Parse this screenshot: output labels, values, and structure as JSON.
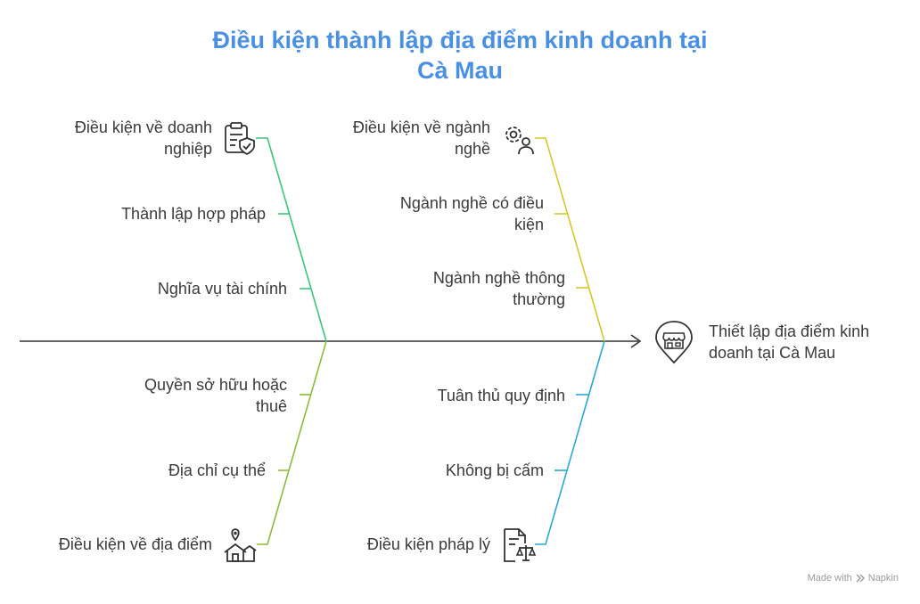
{
  "title": {
    "line1": "Điều kiện thành lập địa điểm kinh doanh tại",
    "line2": "Cà Mau"
  },
  "colors": {
    "green": "#3cc47c",
    "yellow": "#d4c72a",
    "olive": "#8fba3a",
    "cyan": "#2aa8d4",
    "title": "#4a90e2",
    "spine": "#333333"
  },
  "head": {
    "line1": "Thiết lập địa điểm kinh",
    "line2": "doanh tại Cà Mau",
    "icon": "store-location-icon"
  },
  "bones": {
    "top_left": {
      "title": {
        "line1": "Điều kiện về doanh",
        "line2": "nghiệp"
      },
      "icon": "clipboard-shield-icon",
      "items": [
        "Thành lập hợp pháp",
        "Nghĩa vụ tài chính"
      ]
    },
    "top_right": {
      "title": {
        "line1": "Điều kiện về ngành",
        "line2": "nghề"
      },
      "icon": "gear-person-icon",
      "items": [
        {
          "line1": "Ngành nghề có điều",
          "line2": "kiện"
        },
        {
          "line1": "Ngành nghề thông",
          "line2": "thường"
        }
      ]
    },
    "bottom_left": {
      "title": "Điều kiện về địa điểm",
      "icon": "house-location-icon",
      "items": [
        {
          "line1": "Quyền sở hữu hoặc",
          "line2": "thuê"
        },
        "Địa chỉ cụ thể"
      ]
    },
    "bottom_right": {
      "title": "Điều kiện pháp lý",
      "icon": "document-scale-icon",
      "items": [
        "Tuân thủ quy định",
        "Không bị cấm"
      ]
    }
  },
  "watermark": {
    "prefix": "Made with",
    "brand": "Napkin"
  }
}
